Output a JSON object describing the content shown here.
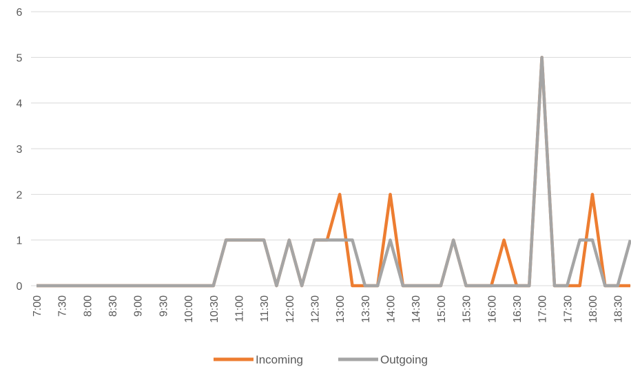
{
  "chart_data": {
    "type": "line",
    "title": "",
    "xlabel": "",
    "ylabel": "",
    "ylim": [
      0,
      6
    ],
    "yticks": [
      0,
      1,
      2,
      3,
      4,
      5,
      6
    ],
    "grid": "horizontal",
    "legend_position": "bottom",
    "x_tick_labels": [
      "7:00",
      "7:30",
      "8:00",
      "8:30",
      "9:00",
      "9:30",
      "10:00",
      "10:30",
      "11:00",
      "11:30",
      "12:00",
      "12:30",
      "13:00",
      "13:30",
      "14:00",
      "14:30",
      "15:00",
      "15:30",
      "16:00",
      "16:30",
      "17:00",
      "17:30",
      "18:00",
      "18:30"
    ],
    "x": [
      "7:00",
      "7:15",
      "7:30",
      "7:45",
      "8:00",
      "8:15",
      "8:30",
      "8:45",
      "9:00",
      "9:15",
      "9:30",
      "9:45",
      "10:00",
      "10:15",
      "10:30",
      "10:45",
      "11:00",
      "11:15",
      "11:30",
      "11:45",
      "12:00",
      "12:15",
      "12:30",
      "12:45",
      "13:00",
      "13:15",
      "13:30",
      "13:45",
      "14:00",
      "14:15",
      "14:30",
      "14:45",
      "15:00",
      "15:15",
      "15:30",
      "15:45",
      "16:00",
      "16:15",
      "16:30",
      "16:45",
      "17:00",
      "17:15",
      "17:30",
      "17:45",
      "18:00",
      "18:15",
      "18:30",
      "18:45"
    ],
    "series": [
      {
        "name": "Incoming",
        "color": "#ED7D31",
        "values": [
          0,
          0,
          0,
          0,
          0,
          0,
          0,
          0,
          0,
          0,
          0,
          0,
          0,
          0,
          0,
          1,
          1,
          1,
          1,
          0,
          1,
          0,
          1,
          1,
          2,
          0,
          0,
          0,
          2,
          0,
          0,
          0,
          0,
          1,
          0,
          0,
          0,
          1,
          0,
          0,
          5,
          0,
          0,
          0,
          2,
          0,
          0,
          0
        ]
      },
      {
        "name": "Outgoing",
        "color": "#A5A5A5",
        "values": [
          0,
          0,
          0,
          0,
          0,
          0,
          0,
          0,
          0,
          0,
          0,
          0,
          0,
          0,
          0,
          1,
          1,
          1,
          1,
          0,
          1,
          0,
          1,
          1,
          1,
          1,
          0,
          0,
          1,
          0,
          0,
          0,
          0,
          1,
          0,
          0,
          0,
          0,
          0,
          0,
          5,
          0,
          0,
          1,
          1,
          0,
          0,
          1
        ]
      }
    ]
  }
}
